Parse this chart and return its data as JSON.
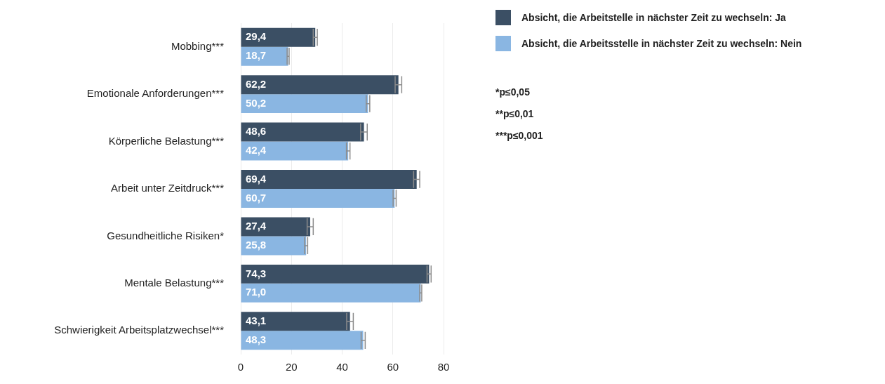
{
  "chart_data": {
    "type": "bar",
    "orientation": "horizontal",
    "categories": [
      "Mobbing***",
      "Emotionale Anforderungen***",
      "Körperliche Belastung***",
      "Arbeit unter Zeitdruck***",
      "Gesundheitliche Risiken*",
      "Mentale Belastung***",
      "Schwierigkeit Arbeitsplatzwechsel***"
    ],
    "series": [
      {
        "name": "Absicht, die Arbeitstelle in nächster Zeit zu wechseln: Ja",
        "color": "#3b4f64",
        "values": [
          29.4,
          62.2,
          48.6,
          69.4,
          27.4,
          74.3,
          43.1
        ],
        "value_labels": [
          "29,4",
          "62,2",
          "48,6",
          "69,4",
          "27,4",
          "74,3",
          "43,1"
        ],
        "errors": [
          0.8,
          1.3,
          1.3,
          1.2,
          1.2,
          0.8,
          1.3
        ]
      },
      {
        "name": "Absicht, die Arbeitsstelle in nächster Zeit zu wechseln: Nein",
        "color": "#8ab6e2",
        "values": [
          18.7,
          50.2,
          42.4,
          60.7,
          25.8,
          71.0,
          48.3
        ],
        "value_labels": [
          "18,7",
          "50,2",
          "42,4",
          "60,7",
          "25,8",
          "71,0",
          "48,3"
        ],
        "errors": [
          0.4,
          0.7,
          0.7,
          0.6,
          0.6,
          0.4,
          0.8
        ]
      }
    ],
    "xlim": [
      0,
      80
    ],
    "xticks": [
      0,
      20,
      40,
      60,
      80
    ],
    "grid": "x",
    "legend": "top right",
    "annotations": [
      "*p≤0,05",
      "**p≤0,01",
      "***p≤0,001"
    ]
  }
}
